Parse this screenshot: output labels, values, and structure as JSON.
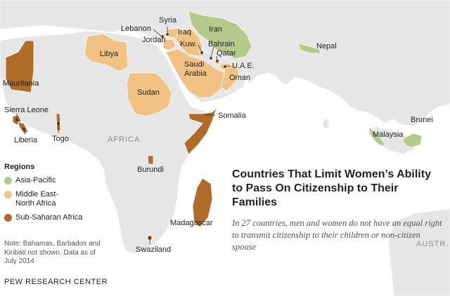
{
  "colors": {
    "land": "#e6e6e6",
    "border": "#ffffff",
    "asia_pacific": "#b4c98a",
    "middle_east_north_africa": "#f2c283",
    "sub_saharan_africa": "#b06b26",
    "leader": "#333333"
  },
  "map_labels": {
    "region_africa": "AFRICA",
    "region_australia": "AUSTR."
  },
  "countries": [
    {
      "name": "Iran",
      "region": "asia_pacific"
    },
    {
      "name": "Nepal",
      "region": "asia_pacific"
    },
    {
      "name": "Malaysia",
      "region": "asia_pacific"
    },
    {
      "name": "Brunei",
      "region": "asia_pacific"
    },
    {
      "name": "Syria",
      "region": "middle_east_north_africa"
    },
    {
      "name": "Lebanon",
      "region": "middle_east_north_africa"
    },
    {
      "name": "Iraq",
      "region": "middle_east_north_africa"
    },
    {
      "name": "Jordan",
      "region": "middle_east_north_africa"
    },
    {
      "name": "Kuw.",
      "region": "middle_east_north_africa"
    },
    {
      "name": "Bahrain",
      "region": "middle_east_north_africa"
    },
    {
      "name": "Qatar",
      "region": "middle_east_north_africa"
    },
    {
      "name": "Saudi Arabia",
      "region": "middle_east_north_africa"
    },
    {
      "name": "U.A.E.",
      "region": "middle_east_north_africa"
    },
    {
      "name": "Oman",
      "region": "middle_east_north_africa"
    },
    {
      "name": "Libya",
      "region": "middle_east_north_africa"
    },
    {
      "name": "Sudan",
      "region": "middle_east_north_africa"
    },
    {
      "name": "Mauritania",
      "region": "sub_saharan_africa"
    },
    {
      "name": "Sierra Leone",
      "region": "sub_saharan_africa"
    },
    {
      "name": "Liberia",
      "region": "sub_saharan_africa"
    },
    {
      "name": "Togo",
      "region": "sub_saharan_africa"
    },
    {
      "name": "Somalia",
      "region": "sub_saharan_africa"
    },
    {
      "name": "Burundi",
      "region": "sub_saharan_africa"
    },
    {
      "name": "Madagascar",
      "region": "sub_saharan_africa"
    },
    {
      "name": "Swaziland",
      "region": "sub_saharan_africa"
    }
  ],
  "legend": {
    "title": "Regions",
    "items": [
      {
        "label": "Asia-Pacific",
        "color_key": "asia_pacific"
      },
      {
        "label": "Middle East-\nNorth Africa",
        "color_key": "middle_east_north_africa"
      },
      {
        "label": "Sub-Saharan Africa",
        "color_key": "sub_saharan_africa"
      }
    ]
  },
  "title": "Countries That Limit Women’s Ability to Pass On Citizenship to Their Families",
  "subtitle": "In 27 countries, men and women do not have an equal right to transmit citizenship to their children or non-citizen spouse",
  "note": "Note: Bahamas, Barbados and Kiribati not shown. Data as of July 2014",
  "source": "PEW RESEARCH CENTER"
}
